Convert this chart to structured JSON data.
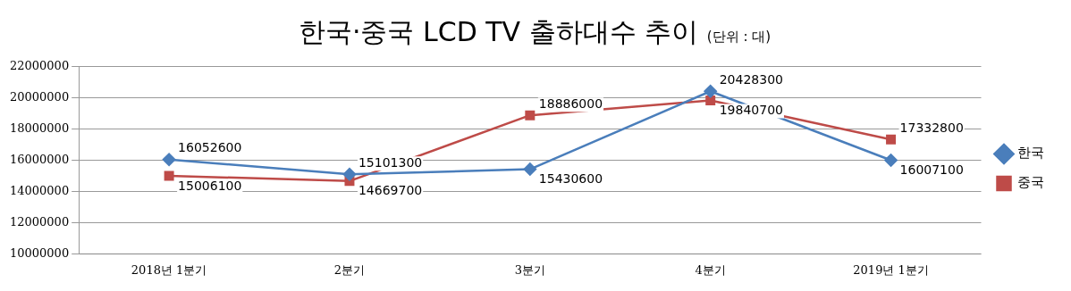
{
  "chart_data": {
    "type": "line",
    "title": "한국·중국 LCD TV 출하대수 추이",
    "subtitle": "(단위 : 대)",
    "categories": [
      "2018년 1분기",
      "2분기",
      "3분기",
      "4분기",
      "2019년 1분기"
    ],
    "series": [
      {
        "name": "한국",
        "color": "#4a7ebb",
        "marker": "diamond",
        "values": [
          16052600,
          15101300,
          15430600,
          20428300,
          16007100
        ]
      },
      {
        "name": "중국",
        "color": "#be4b48",
        "marker": "square",
        "values": [
          15006100,
          14669700,
          18886000,
          19840700,
          17332800
        ]
      }
    ],
    "ylim": [
      10000000,
      22000000
    ],
    "yticks": [
      10000000,
      12000000,
      14000000,
      16000000,
      18000000,
      20000000,
      22000000
    ],
    "grid": "y",
    "legend": "right",
    "data_labels": true,
    "line_style": "solid"
  }
}
